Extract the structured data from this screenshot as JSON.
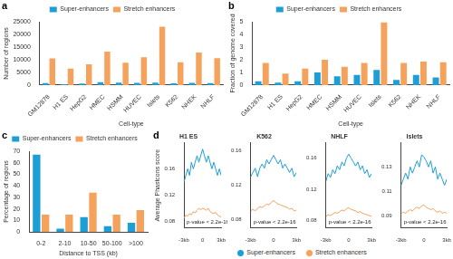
{
  "chart_data": [
    {
      "panel": "a",
      "type": "bar",
      "xlabel": "Cell-type",
      "ylabel": "Number of regions",
      "categories": [
        "GM12878",
        "H1 ES",
        "HepG2",
        "HMEC",
        "HSMM",
        "HUVEC",
        "Islets",
        "K562",
        "NHEK",
        "NHLF"
      ],
      "series": [
        {
          "name": "Super-enhancers",
          "color": "#1d9fd6",
          "values": [
            800,
            300,
            600,
            1100,
            1000,
            900,
            1000,
            700,
            900,
            800
          ]
        },
        {
          "name": "Stretch enhancers",
          "color": "#f5a25d",
          "values": [
            10500,
            6500,
            8200,
            13200,
            8800,
            11000,
            23000,
            9000,
            12800,
            10600
          ]
        }
      ],
      "ylim": [
        0,
        25000
      ],
      "yticks": [
        0,
        5000,
        10000,
        15000,
        20000,
        25000
      ],
      "grid": false,
      "legend": "top"
    },
    {
      "panel": "b",
      "type": "bar",
      "xlabel": "Cell-type",
      "ylabel": "Fraction of genome covered",
      "categories": [
        "GM12878",
        "H1 ES",
        "HepG2",
        "HMEC",
        "HSMM",
        "HUVEC",
        "Islets",
        "K562",
        "NHEK",
        "NHLF"
      ],
      "series": [
        {
          "name": "Super-enhancers",
          "color": "#1d9fd6",
          "values": [
            0.3,
            0.2,
            0.3,
            1.0,
            0.7,
            0.8,
            1.2,
            0.4,
            0.8,
            0.6
          ]
        },
        {
          "name": "Stretch enhancers",
          "color": "#f5a25d",
          "values": [
            1.75,
            0.9,
            1.3,
            2.0,
            1.45,
            1.75,
            4.95,
            1.75,
            1.85,
            1.8
          ]
        }
      ],
      "ylim": [
        0,
        5
      ],
      "yticks": [
        0,
        1,
        2,
        3,
        4,
        5
      ],
      "grid": false,
      "legend": "top"
    },
    {
      "panel": "c",
      "type": "bar",
      "xlabel": "Distance to TSS (kb)",
      "ylabel": "Percentage of regions",
      "categories": [
        "0-2",
        "2-10",
        "10-50",
        "50-100",
        ">100"
      ],
      "series": [
        {
          "name": "Super-enhancers",
          "color": "#1d9fd6",
          "values": [
            67,
            3,
            13,
            5,
            8
          ]
        },
        {
          "name": "Stretch enhancers",
          "color": "#f5a25d",
          "values": [
            15,
            15,
            34,
            15,
            19
          ]
        }
      ],
      "ylim": [
        0,
        70
      ],
      "yticks": [
        0,
        10,
        20,
        30,
        40,
        50,
        60,
        70
      ],
      "grid": false,
      "legend": "top"
    },
    {
      "panel": "d",
      "type": "line",
      "title": "H1 ES",
      "ylabel": "Average Phastcons score",
      "annotation": "p-value < 2.2e-16",
      "x": [
        -3,
        -2.7,
        -2.4,
        -2.1,
        -1.8,
        -1.5,
        -1.2,
        -0.9,
        -0.6,
        -0.3,
        0,
        0.3,
        0.6,
        0.9,
        1.2,
        1.5,
        1.8,
        2.1,
        2.4,
        2.7,
        3
      ],
      "series": [
        {
          "name": "Super-enhancers",
          "color": "#1d9fd6",
          "marker": "circle",
          "values": [
            0.14,
            0.15,
            0.16,
            0.15,
            0.17,
            0.16,
            0.17,
            0.18,
            0.17,
            0.18,
            0.19,
            0.18,
            0.17,
            0.18,
            0.17,
            0.16,
            0.17,
            0.16,
            0.15,
            0.16,
            0.15
          ]
        },
        {
          "name": "Stretch enhancers",
          "color": "#f5a25d",
          "marker": "circle",
          "values": [
            0.085,
            0.09,
            0.088,
            0.092,
            0.09,
            0.095,
            0.093,
            0.097,
            0.1,
            0.098,
            0.1,
            0.099,
            0.097,
            0.1,
            0.095,
            0.093,
            0.092,
            0.094,
            0.09,
            0.088,
            0.087
          ]
        }
      ],
      "xlim": [
        -3,
        3
      ],
      "xticks": [
        {
          "value": -3,
          "label": "-3kb"
        },
        0,
        {
          "value": 3,
          "label": "3kb"
        }
      ],
      "ylim": [
        0.07,
        0.2
      ],
      "yticks": [
        0.08,
        0.12,
        0.16
      ],
      "grid": false
    },
    {
      "panel": null,
      "type": "line",
      "title": "K562",
      "annotation": "p-value < 2.2e-16",
      "x": [
        -3,
        -2.7,
        -2.4,
        -2.1,
        -1.8,
        -1.5,
        -1.2,
        -0.9,
        -0.6,
        -0.3,
        0,
        0.3,
        0.6,
        0.9,
        1.2,
        1.5,
        1.8,
        2.1,
        2.4,
        2.7,
        3
      ],
      "series": [
        {
          "name": "Super-enhancers",
          "color": "#1d9fd6",
          "marker": "circle",
          "values": [
            0.13,
            0.135,
            0.14,
            0.13,
            0.14,
            0.145,
            0.14,
            0.15,
            0.145,
            0.15,
            0.155,
            0.15,
            0.145,
            0.15,
            0.14,
            0.145,
            0.14,
            0.135,
            0.14,
            0.13,
            0.135
          ]
        },
        {
          "name": "Stretch enhancers",
          "color": "#f5a25d",
          "marker": "circle",
          "values": [
            0.09,
            0.092,
            0.09,
            0.093,
            0.095,
            0.094,
            0.096,
            0.098,
            0.097,
            0.1,
            0.102,
            0.1,
            0.098,
            0.097,
            0.096,
            0.095,
            0.094,
            0.092,
            0.093,
            0.09,
            0.091
          ]
        }
      ],
      "xlim": [
        -3,
        3
      ],
      "xticks": [
        {
          "value": -3,
          "label": "-3kb"
        },
        0,
        {
          "value": 3,
          "label": "3kb"
        }
      ],
      "ylim": [
        0.07,
        0.17
      ],
      "yticks": [
        0.08,
        0.12,
        0.16
      ],
      "grid": false
    },
    {
      "panel": null,
      "type": "line",
      "title": "NHLF",
      "annotation": "p-value < 2.2e-16",
      "x": [
        -3,
        -2.7,
        -2.4,
        -2.1,
        -1.8,
        -1.5,
        -1.2,
        -0.9,
        -0.6,
        -0.3,
        0,
        0.3,
        0.6,
        0.9,
        1.2,
        1.5,
        1.8,
        2.1,
        2.4,
        2.7,
        3
      ],
      "series": [
        {
          "name": "Super-enhancers",
          "color": "#1d9fd6",
          "marker": "circle",
          "values": [
            0.13,
            0.14,
            0.135,
            0.145,
            0.14,
            0.15,
            0.145,
            0.155,
            0.15,
            0.16,
            0.165,
            0.16,
            0.155,
            0.15,
            0.155,
            0.145,
            0.15,
            0.14,
            0.145,
            0.135,
            0.14
          ]
        },
        {
          "name": "Stretch enhancers",
          "color": "#f5a25d",
          "marker": "circle",
          "values": [
            0.085,
            0.087,
            0.086,
            0.088,
            0.09,
            0.089,
            0.091,
            0.093,
            0.092,
            0.095,
            0.096,
            0.094,
            0.093,
            0.092,
            0.09,
            0.091,
            0.089,
            0.088,
            0.087,
            0.086,
            0.085
          ]
        }
      ],
      "xlim": [
        -3,
        3
      ],
      "xticks": [
        {
          "value": -3,
          "label": "-3kb"
        },
        0,
        {
          "value": 3,
          "label": "3kb"
        }
      ],
      "ylim": [
        0.07,
        0.18
      ],
      "yticks": [
        0.08,
        0.12,
        0.16
      ],
      "grid": false
    },
    {
      "panel": null,
      "type": "line",
      "title": "Islets",
      "annotation": "p-value < 2.2e-16",
      "x": [
        -3,
        -2.7,
        -2.4,
        -2.1,
        -1.8,
        -1.5,
        -1.2,
        -0.9,
        -0.6,
        -0.3,
        0,
        0.3,
        0.6,
        0.9,
        1.2,
        1.5,
        1.8,
        2.1,
        2.4,
        2.7,
        3
      ],
      "series": [
        {
          "name": "Super-enhancers",
          "color": "#1d9fd6",
          "marker": "circle",
          "values": [
            0.115,
            0.12,
            0.125,
            0.12,
            0.13,
            0.125,
            0.13,
            0.135,
            0.13,
            0.14,
            0.138,
            0.135,
            0.13,
            0.135,
            0.125,
            0.13,
            0.12,
            0.125,
            0.12,
            0.115,
            0.12
          ]
        },
        {
          "name": "Stretch enhancers",
          "color": "#f5a25d",
          "marker": "circle",
          "values": [
            0.092,
            0.093,
            0.092,
            0.094,
            0.095,
            0.094,
            0.096,
            0.097,
            0.096,
            0.098,
            0.099,
            0.097,
            0.096,
            0.095,
            0.096,
            0.094,
            0.093,
            0.094,
            0.092,
            0.093,
            0.092
          ]
        }
      ],
      "xlim": [
        -3,
        3
      ],
      "xticks": [
        {
          "value": -3,
          "label": "-3kb"
        },
        0,
        {
          "value": 3,
          "label": "3kb"
        }
      ],
      "ylim": [
        0.08,
        0.15
      ],
      "yticks": [
        0.09,
        0.11,
        0.13
      ],
      "grid": false,
      "legend": "bottom"
    }
  ]
}
